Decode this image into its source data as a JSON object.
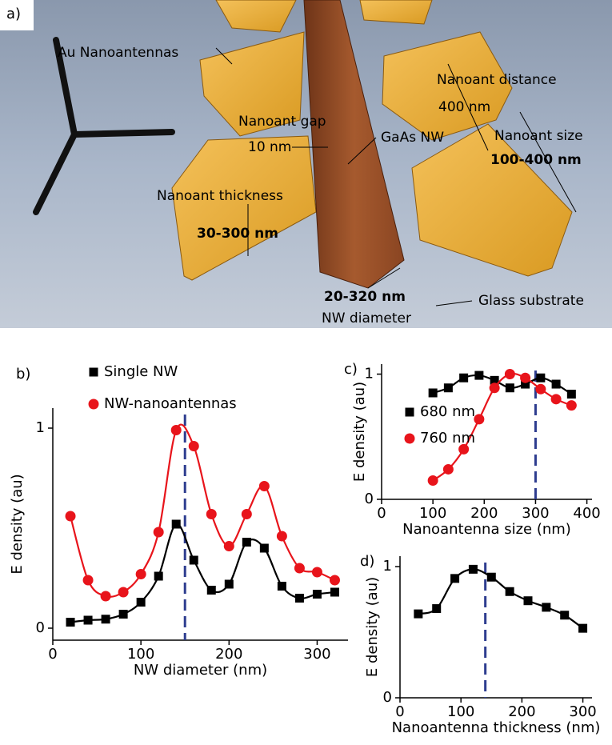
{
  "panel_a": {
    "label": "a)",
    "au_nanoantennas": "Au Nanoantennas",
    "distance_label": "Nanoant distance",
    "distance_value": "400 nm",
    "size_label": "Nanoant size",
    "size_value": "100-400 nm",
    "gap_label": "Nanoant gap",
    "gap_value": "10 nm",
    "gaas": "GaAs NW",
    "thickness_label": "Nanoant thickness",
    "thickness_value": "30-300 nm",
    "diameter_value": "20-320 nm",
    "substrate": "Glass substrate",
    "diameter_label": "NW diameter"
  },
  "chart_data": [
    {
      "type": "line",
      "panel_label": "b)",
      "xlabel": "NW diameter (nm)",
      "ylabel": "E density (au)",
      "xlim": [
        0,
        335
      ],
      "ylim": [
        -0.06,
        1.1
      ],
      "xticks": [
        0,
        100,
        200,
        300
      ],
      "yticks": [
        0,
        1
      ],
      "vline": 150,
      "vline_color": "#2e3d8f",
      "series": [
        {
          "name": "Single NW",
          "color": "#000000",
          "marker": "square",
          "x": [
            20,
            40,
            60,
            80,
            100,
            120,
            140,
            160,
            180,
            200,
            220,
            240,
            260,
            280,
            300,
            320
          ],
          "values": [
            0.03,
            0.04,
            0.045,
            0.07,
            0.13,
            0.26,
            0.52,
            0.34,
            0.19,
            0.22,
            0.43,
            0.4,
            0.21,
            0.15,
            0.17,
            0.18
          ]
        },
        {
          "name": "NW-nanoantennas",
          "color": "#e8141b",
          "marker": "circle",
          "x": [
            20,
            40,
            60,
            80,
            100,
            120,
            140,
            160,
            180,
            200,
            220,
            240,
            260,
            280,
            300,
            320
          ],
          "values": [
            0.56,
            0.24,
            0.16,
            0.18,
            0.27,
            0.48,
            0.99,
            0.91,
            0.57,
            0.41,
            0.57,
            0.71,
            0.46,
            0.3,
            0.28,
            0.24
          ]
        }
      ]
    },
    {
      "type": "line",
      "panel_label": "c)",
      "xlabel": "Nanoantenna size (nm)",
      "ylabel": "E density (au)",
      "xlim": [
        0,
        410
      ],
      "ylim": [
        0,
        1.08
      ],
      "xticks": [
        0,
        100,
        200,
        300,
        400
      ],
      "yticks": [
        0,
        1
      ],
      "vline": 300,
      "vline_color": "#2e3d8f",
      "series": [
        {
          "name": "680 nm",
          "color": "#000000",
          "marker": "square",
          "x": [
            100,
            130,
            160,
            190,
            220,
            250,
            280,
            310,
            340,
            370
          ],
          "values": [
            0.85,
            0.89,
            0.97,
            0.99,
            0.95,
            0.89,
            0.92,
            0.97,
            0.92,
            0.84
          ]
        },
        {
          "name": "760 nm",
          "color": "#e8141b",
          "marker": "circle",
          "x": [
            100,
            130,
            160,
            190,
            220,
            250,
            280,
            310,
            340,
            370
          ],
          "values": [
            0.15,
            0.24,
            0.4,
            0.64,
            0.89,
            1.0,
            0.97,
            0.88,
            0.8,
            0.75
          ]
        }
      ]
    },
    {
      "type": "line",
      "panel_label": "d)",
      "xlabel": "Nanoantenna thickness (nm)",
      "ylabel": "E density (au)",
      "xlim": [
        0,
        315
      ],
      "ylim": [
        0,
        1.08
      ],
      "xticks": [
        0,
        100,
        200,
        300
      ],
      "yticks": [
        0,
        1
      ],
      "vline": 140,
      "vline_color": "#2e3d8f",
      "series": [
        {
          "color": "#000000",
          "marker": "square",
          "x": [
            30,
            60,
            90,
            120,
            150,
            180,
            210,
            240,
            270,
            300
          ],
          "values": [
            0.64,
            0.68,
            0.91,
            0.98,
            0.92,
            0.81,
            0.74,
            0.69,
            0.63,
            0.53
          ]
        }
      ]
    }
  ]
}
